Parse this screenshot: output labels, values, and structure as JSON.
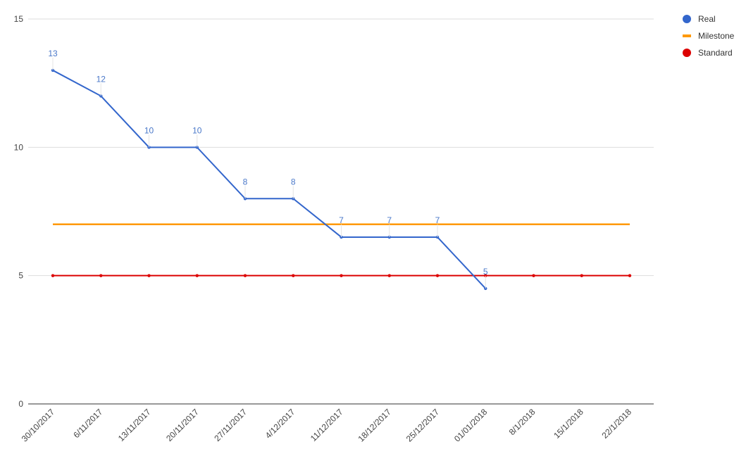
{
  "chart_data": {
    "type": "line",
    "categories": [
      "30/10/2017",
      "6/11/2017",
      "13/11/2017",
      "20/11/2017",
      "27/11/2017",
      "4/12/2017",
      "11/12/2017",
      "18/12/2017",
      "25/12/2017",
      "01/01/2018",
      "8/1/2018",
      "15/1/2018",
      "22/1/2018"
    ],
    "series": [
      {
        "name": "Real",
        "color": "#3366cc",
        "values": [
          13,
          12,
          10,
          10,
          8,
          8,
          6.5,
          6.5,
          6.5,
          4.5,
          null,
          null,
          null
        ],
        "labels": [
          "13",
          "12",
          "10",
          "10",
          "8",
          "8",
          "7",
          "7",
          "7",
          "5",
          null,
          null,
          null
        ]
      },
      {
        "name": "Milestone",
        "color": "#ff9900",
        "values": [
          7,
          7,
          7,
          7,
          7,
          7,
          7,
          7,
          7,
          7,
          7,
          7,
          7
        ]
      },
      {
        "name": "Standard",
        "color": "#dc0000",
        "values": [
          5,
          5,
          5,
          5,
          5,
          5,
          5,
          5,
          5,
          5,
          5,
          5,
          5
        ]
      }
    ],
    "y_ticks": [
      "0",
      "5",
      "10",
      "15"
    ],
    "ylim": [
      0,
      15
    ],
    "grid": true,
    "legend_position": "top-right"
  }
}
